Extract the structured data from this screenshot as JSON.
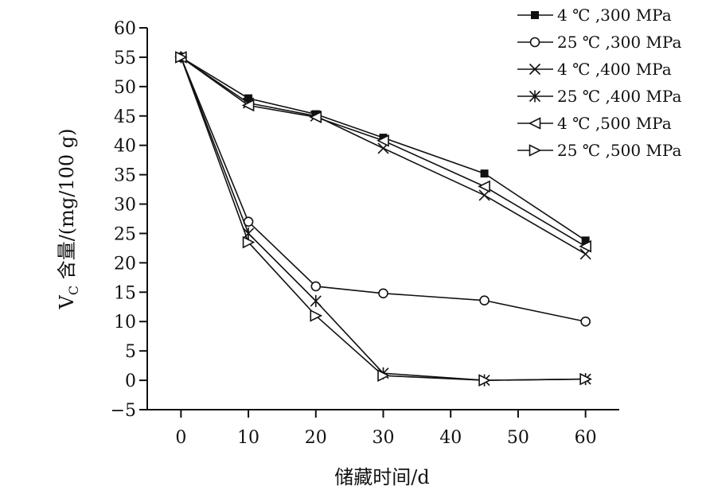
{
  "chart_data": {
    "type": "line",
    "xlabel": "储藏时间/d",
    "ylabel": "V_C 含量/(mg/100 g)",
    "ylabel_main": "V",
    "ylabel_sub": "C",
    "ylabel_rest": " 含量/(mg/100 g)",
    "xlim": [
      -5,
      65
    ],
    "ylim": [
      -5,
      60
    ],
    "xticks": [
      0,
      10,
      20,
      30,
      40,
      50,
      60
    ],
    "yticks": [
      -5,
      0,
      5,
      10,
      15,
      20,
      25,
      30,
      35,
      40,
      45,
      50,
      55,
      60
    ],
    "x": [
      0,
      10,
      20,
      30,
      45,
      60
    ],
    "grid": false,
    "legend_position": "top-right",
    "series": [
      {
        "name": "4 ℃ ,300 MPa",
        "marker": "filled-square",
        "values": [
          55,
          48,
          45.3,
          41.3,
          35.2,
          23.8
        ]
      },
      {
        "name": "25 ℃ ,300 MPa",
        "marker": "open-circle",
        "values": [
          55,
          27,
          16,
          14.8,
          13.6,
          10
        ]
      },
      {
        "name": "4 ℃ ,400 MPa",
        "marker": "x-cross",
        "values": [
          55,
          47.2,
          45,
          39.5,
          31.5,
          21.5
        ]
      },
      {
        "name": "25 ℃ ,400 MPa",
        "marker": "asterisk",
        "values": [
          55,
          25,
          13.5,
          1.2,
          0,
          0.2
        ]
      },
      {
        "name": "4 ℃ ,500 MPa",
        "marker": "left-triangle",
        "values": [
          55,
          46.8,
          44.8,
          40.8,
          33,
          22.8
        ]
      },
      {
        "name": "25 ℃ ,500 MPa",
        "marker": "right-triangle",
        "values": [
          55,
          23.5,
          11,
          0.8,
          0,
          0.2
        ]
      }
    ]
  }
}
